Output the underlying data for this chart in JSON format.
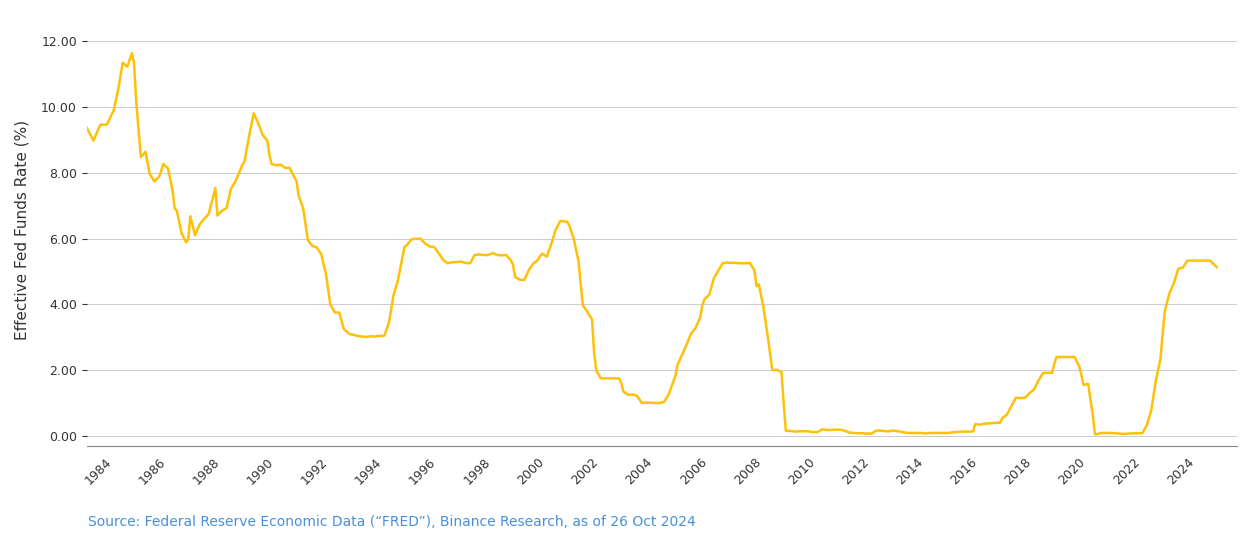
{
  "title": "",
  "ylabel": "Effective Fed Funds Rate (%)",
  "source_text": "Source: Federal Reserve Economic Data (“FRED”), Binance Research, as of 26 Oct 2024",
  "line_color": "#FFC107",
  "line_width": 1.8,
  "background_color": "#FFFFFF",
  "grid_color": "#CCCCCC",
  "ylim": [
    -0.3,
    12.8
  ],
  "yticks": [
    0.0,
    2.0,
    4.0,
    6.0,
    8.0,
    10.0,
    12.0
  ],
  "source_color": "#4A90D9",
  "data": [
    [
      1983.0,
      9.37
    ],
    [
      1983.25,
      8.98
    ],
    [
      1983.5,
      9.46
    ],
    [
      1983.75,
      9.47
    ],
    [
      1984.0,
      9.91
    ],
    [
      1984.17,
      10.56
    ],
    [
      1984.33,
      11.35
    ],
    [
      1984.5,
      11.23
    ],
    [
      1984.67,
      11.64
    ],
    [
      1984.75,
      11.3
    ],
    [
      1984.83,
      10.16
    ],
    [
      1985.0,
      8.48
    ],
    [
      1985.17,
      8.64
    ],
    [
      1985.33,
      7.96
    ],
    [
      1985.5,
      7.74
    ],
    [
      1985.67,
      7.88
    ],
    [
      1985.75,
      8.05
    ],
    [
      1985.83,
      8.27
    ],
    [
      1986.0,
      8.14
    ],
    [
      1986.17,
      7.48
    ],
    [
      1986.25,
      6.92
    ],
    [
      1986.33,
      6.85
    ],
    [
      1986.5,
      6.17
    ],
    [
      1986.67,
      5.89
    ],
    [
      1986.75,
      5.98
    ],
    [
      1986.83,
      6.68
    ],
    [
      1987.0,
      6.1
    ],
    [
      1987.17,
      6.43
    ],
    [
      1987.33,
      6.59
    ],
    [
      1987.5,
      6.74
    ],
    [
      1987.67,
      7.26
    ],
    [
      1987.75,
      7.54
    ],
    [
      1987.83,
      6.7
    ],
    [
      1988.0,
      6.85
    ],
    [
      1988.17,
      6.93
    ],
    [
      1988.33,
      7.52
    ],
    [
      1988.5,
      7.75
    ],
    [
      1988.67,
      8.08
    ],
    [
      1988.75,
      8.24
    ],
    [
      1988.83,
      8.35
    ],
    [
      1989.0,
      9.12
    ],
    [
      1989.17,
      9.81
    ],
    [
      1989.33,
      9.53
    ],
    [
      1989.5,
      9.15
    ],
    [
      1989.67,
      8.99
    ],
    [
      1989.75,
      8.55
    ],
    [
      1989.83,
      8.27
    ],
    [
      1990.0,
      8.23
    ],
    [
      1990.17,
      8.25
    ],
    [
      1990.33,
      8.15
    ],
    [
      1990.5,
      8.15
    ],
    [
      1990.67,
      7.87
    ],
    [
      1990.75,
      7.76
    ],
    [
      1990.83,
      7.31
    ],
    [
      1991.0,
      6.91
    ],
    [
      1991.17,
      5.96
    ],
    [
      1991.33,
      5.78
    ],
    [
      1991.5,
      5.73
    ],
    [
      1991.67,
      5.52
    ],
    [
      1991.75,
      5.22
    ],
    [
      1991.83,
      4.97
    ],
    [
      1992.0,
      4.0
    ],
    [
      1992.17,
      3.75
    ],
    [
      1992.33,
      3.75
    ],
    [
      1992.5,
      3.25
    ],
    [
      1992.67,
      3.12
    ],
    [
      1992.75,
      3.09
    ],
    [
      1992.83,
      3.08
    ],
    [
      1993.0,
      3.04
    ],
    [
      1993.17,
      3.02
    ],
    [
      1993.33,
      3.01
    ],
    [
      1993.5,
      3.03
    ],
    [
      1993.67,
      3.02
    ],
    [
      1993.75,
      3.04
    ],
    [
      1993.83,
      3.04
    ],
    [
      1994.0,
      3.05
    ],
    [
      1994.17,
      3.45
    ],
    [
      1994.33,
      4.26
    ],
    [
      1994.5,
      4.74
    ],
    [
      1994.67,
      5.45
    ],
    [
      1994.75,
      5.76
    ],
    [
      1994.83,
      5.8
    ],
    [
      1995.0,
      5.98
    ],
    [
      1995.17,
      5.99
    ],
    [
      1995.33,
      6.0
    ],
    [
      1995.5,
      5.85
    ],
    [
      1995.67,
      5.76
    ],
    [
      1995.75,
      5.75
    ],
    [
      1995.83,
      5.75
    ],
    [
      1996.0,
      5.56
    ],
    [
      1996.17,
      5.35
    ],
    [
      1996.33,
      5.25
    ],
    [
      1996.5,
      5.28
    ],
    [
      1996.67,
      5.29
    ],
    [
      1996.75,
      5.29
    ],
    [
      1996.83,
      5.3
    ],
    [
      1997.0,
      5.26
    ],
    [
      1997.17,
      5.25
    ],
    [
      1997.33,
      5.5
    ],
    [
      1997.5,
      5.52
    ],
    [
      1997.67,
      5.5
    ],
    [
      1997.75,
      5.5
    ],
    [
      1997.83,
      5.5
    ],
    [
      1998.0,
      5.56
    ],
    [
      1998.17,
      5.5
    ],
    [
      1998.33,
      5.49
    ],
    [
      1998.5,
      5.5
    ],
    [
      1998.67,
      5.34
    ],
    [
      1998.75,
      5.21
    ],
    [
      1998.83,
      4.83
    ],
    [
      1999.0,
      4.75
    ],
    [
      1999.17,
      4.74
    ],
    [
      1999.33,
      5.04
    ],
    [
      1999.5,
      5.24
    ],
    [
      1999.67,
      5.35
    ],
    [
      1999.75,
      5.47
    ],
    [
      1999.83,
      5.54
    ],
    [
      2000.0,
      5.45
    ],
    [
      2000.17,
      5.85
    ],
    [
      2000.33,
      6.27
    ],
    [
      2000.5,
      6.54
    ],
    [
      2000.67,
      6.52
    ],
    [
      2000.75,
      6.51
    ],
    [
      2000.83,
      6.4
    ],
    [
      2001.0,
      5.98
    ],
    [
      2001.17,
      5.31
    ],
    [
      2001.33,
      3.97
    ],
    [
      2001.5,
      3.77
    ],
    [
      2001.67,
      3.54
    ],
    [
      2001.75,
      2.49
    ],
    [
      2001.83,
      1.98
    ],
    [
      2002.0,
      1.75
    ],
    [
      2002.17,
      1.75
    ],
    [
      2002.33,
      1.75
    ],
    [
      2002.5,
      1.75
    ],
    [
      2002.67,
      1.75
    ],
    [
      2002.75,
      1.61
    ],
    [
      2002.83,
      1.35
    ],
    [
      2003.0,
      1.25
    ],
    [
      2003.17,
      1.26
    ],
    [
      2003.33,
      1.22
    ],
    [
      2003.5,
      1.01
    ],
    [
      2003.67,
      1.01
    ],
    [
      2003.75,
      1.01
    ],
    [
      2003.83,
      1.01
    ],
    [
      2004.0,
      1.0
    ],
    [
      2004.17,
      1.0
    ],
    [
      2004.33,
      1.03
    ],
    [
      2004.5,
      1.26
    ],
    [
      2004.67,
      1.64
    ],
    [
      2004.75,
      1.82
    ],
    [
      2004.83,
      2.16
    ],
    [
      2005.0,
      2.47
    ],
    [
      2005.17,
      2.79
    ],
    [
      2005.33,
      3.11
    ],
    [
      2005.5,
      3.29
    ],
    [
      2005.67,
      3.61
    ],
    [
      2005.75,
      3.99
    ],
    [
      2005.83,
      4.16
    ],
    [
      2006.0,
      4.29
    ],
    [
      2006.17,
      4.79
    ],
    [
      2006.33,
      5.02
    ],
    [
      2006.5,
      5.25
    ],
    [
      2006.67,
      5.27
    ],
    [
      2006.75,
      5.26
    ],
    [
      2006.83,
      5.26
    ],
    [
      2007.0,
      5.26
    ],
    [
      2007.17,
      5.25
    ],
    [
      2007.33,
      5.25
    ],
    [
      2007.5,
      5.26
    ],
    [
      2007.67,
      5.04
    ],
    [
      2007.75,
      4.55
    ],
    [
      2007.83,
      4.61
    ],
    [
      2008.0,
      3.94
    ],
    [
      2008.17,
      2.98
    ],
    [
      2008.33,
      2.0
    ],
    [
      2008.5,
      2.01
    ],
    [
      2008.67,
      1.94
    ],
    [
      2008.75,
      1.0
    ],
    [
      2008.83,
      0.16
    ],
    [
      2009.0,
      0.15
    ],
    [
      2009.17,
      0.13
    ],
    [
      2009.33,
      0.14
    ],
    [
      2009.5,
      0.14
    ],
    [
      2009.67,
      0.14
    ],
    [
      2009.75,
      0.12
    ],
    [
      2009.83,
      0.12
    ],
    [
      2010.0,
      0.11
    ],
    [
      2010.17,
      0.2
    ],
    [
      2010.33,
      0.18
    ],
    [
      2010.5,
      0.18
    ],
    [
      2010.67,
      0.19
    ],
    [
      2010.75,
      0.19
    ],
    [
      2010.83,
      0.19
    ],
    [
      2011.0,
      0.16
    ],
    [
      2011.17,
      0.1
    ],
    [
      2011.33,
      0.09
    ],
    [
      2011.5,
      0.08
    ],
    [
      2011.67,
      0.08
    ],
    [
      2011.75,
      0.07
    ],
    [
      2011.83,
      0.07
    ],
    [
      2012.0,
      0.07
    ],
    [
      2012.17,
      0.16
    ],
    [
      2012.33,
      0.16
    ],
    [
      2012.5,
      0.14
    ],
    [
      2012.67,
      0.14
    ],
    [
      2012.75,
      0.16
    ],
    [
      2012.83,
      0.16
    ],
    [
      2013.0,
      0.14
    ],
    [
      2013.17,
      0.11
    ],
    [
      2013.33,
      0.09
    ],
    [
      2013.5,
      0.09
    ],
    [
      2013.67,
      0.09
    ],
    [
      2013.75,
      0.09
    ],
    [
      2013.83,
      0.09
    ],
    [
      2014.0,
      0.07
    ],
    [
      2014.17,
      0.09
    ],
    [
      2014.33,
      0.09
    ],
    [
      2014.5,
      0.09
    ],
    [
      2014.67,
      0.09
    ],
    [
      2014.75,
      0.09
    ],
    [
      2014.83,
      0.09
    ],
    [
      2015.0,
      0.11
    ],
    [
      2015.17,
      0.12
    ],
    [
      2015.33,
      0.13
    ],
    [
      2015.5,
      0.13
    ],
    [
      2015.67,
      0.13
    ],
    [
      2015.75,
      0.14
    ],
    [
      2015.83,
      0.36
    ],
    [
      2016.0,
      0.34
    ],
    [
      2016.17,
      0.37
    ],
    [
      2016.33,
      0.38
    ],
    [
      2016.5,
      0.39
    ],
    [
      2016.67,
      0.4
    ],
    [
      2016.75,
      0.4
    ],
    [
      2016.83,
      0.54
    ],
    [
      2017.0,
      0.65
    ],
    [
      2017.17,
      0.91
    ],
    [
      2017.33,
      1.16
    ],
    [
      2017.5,
      1.15
    ],
    [
      2017.67,
      1.16
    ],
    [
      2017.75,
      1.22
    ],
    [
      2017.83,
      1.3
    ],
    [
      2018.0,
      1.41
    ],
    [
      2018.17,
      1.69
    ],
    [
      2018.33,
      1.91
    ],
    [
      2018.5,
      1.92
    ],
    [
      2018.67,
      1.92
    ],
    [
      2018.75,
      2.19
    ],
    [
      2018.83,
      2.4
    ],
    [
      2019.0,
      2.4
    ],
    [
      2019.17,
      2.4
    ],
    [
      2019.33,
      2.4
    ],
    [
      2019.5,
      2.4
    ],
    [
      2019.67,
      2.12
    ],
    [
      2019.75,
      1.85
    ],
    [
      2019.83,
      1.55
    ],
    [
      2020.0,
      1.58
    ],
    [
      2020.17,
      0.65
    ],
    [
      2020.25,
      0.05
    ],
    [
      2020.33,
      0.05
    ],
    [
      2020.5,
      0.09
    ],
    [
      2020.67,
      0.09
    ],
    [
      2020.75,
      0.09
    ],
    [
      2020.83,
      0.09
    ],
    [
      2021.0,
      0.08
    ],
    [
      2021.17,
      0.07
    ],
    [
      2021.33,
      0.06
    ],
    [
      2021.5,
      0.07
    ],
    [
      2021.67,
      0.08
    ],
    [
      2021.75,
      0.08
    ],
    [
      2021.83,
      0.08
    ],
    [
      2022.0,
      0.08
    ],
    [
      2022.17,
      0.33
    ],
    [
      2022.33,
      0.77
    ],
    [
      2022.5,
      1.68
    ],
    [
      2022.67,
      2.33
    ],
    [
      2022.75,
      3.08
    ],
    [
      2022.83,
      3.78
    ],
    [
      2023.0,
      4.33
    ],
    [
      2023.17,
      4.65
    ],
    [
      2023.33,
      5.08
    ],
    [
      2023.5,
      5.12
    ],
    [
      2023.67,
      5.33
    ],
    [
      2023.75,
      5.33
    ],
    [
      2023.83,
      5.33
    ],
    [
      2024.0,
      5.33
    ],
    [
      2024.17,
      5.33
    ],
    [
      2024.33,
      5.33
    ],
    [
      2024.5,
      5.33
    ],
    [
      2024.67,
      5.2
    ],
    [
      2024.75,
      5.13
    ]
  ]
}
